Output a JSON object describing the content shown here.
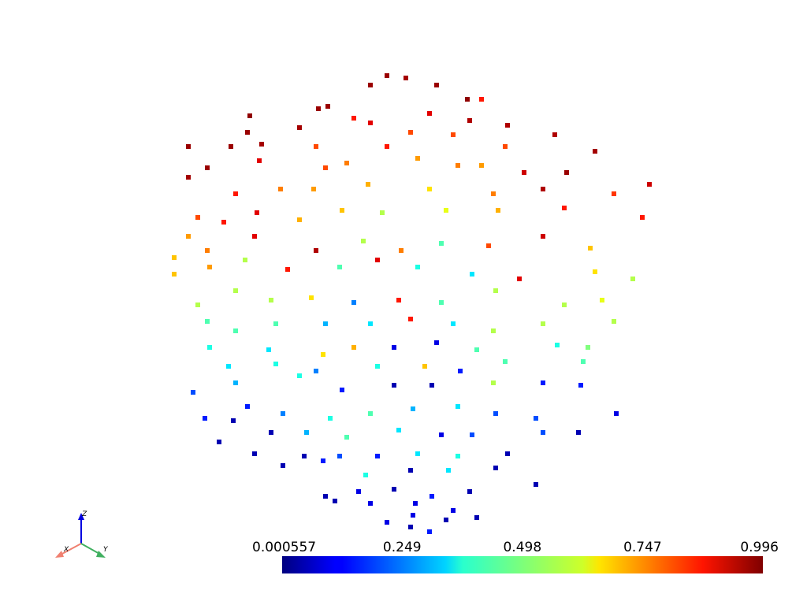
{
  "chart_data": {
    "type": "scatter",
    "colormap": "jet",
    "xlim": [
      -1.1,
      1.1
    ],
    "ylim": [
      -1.1,
      1.1
    ],
    "clim": [
      0.000557,
      0.996
    ],
    "cticks": [
      0.000557,
      0.249,
      0.498,
      0.747,
      0.996
    ],
    "orientation_axes": [
      "X",
      "Y",
      "Z"
    ],
    "x": [
      -0.07,
      -0.14,
      0.01,
      0.14,
      0.27,
      0.33,
      -0.36,
      -0.32,
      -0.65,
      -0.21,
      -0.14,
      0.11,
      0.28,
      0.44,
      -0.44,
      -0.66,
      -0.91,
      -0.73,
      -0.6,
      -0.37,
      -0.07,
      0.03,
      0.21,
      0.43,
      0.64,
      0.81,
      -0.61,
      -0.91,
      -0.83,
      -0.33,
      -0.24,
      0.06,
      0.23,
      0.33,
      0.51,
      0.69,
      1.04,
      0.89,
      -0.71,
      -0.52,
      -0.38,
      -0.15,
      0.11,
      0.38,
      0.59,
      -0.87,
      -0.91,
      -0.76,
      -0.62,
      -0.44,
      -0.26,
      -0.09,
      0.18,
      0.4,
      0.68,
      1.01,
      -0.97,
      -0.83,
      -0.63,
      -0.37,
      -0.17,
      -0.01,
      0.16,
      0.36,
      0.59,
      0.79,
      -0.97,
      -0.82,
      -0.67,
      -0.49,
      -0.27,
      -0.11,
      0.06,
      0.29,
      0.49,
      0.81,
      0.97,
      -0.87,
      -0.71,
      -0.56,
      -0.39,
      -0.21,
      -0.02,
      0.16,
      0.39,
      0.68,
      0.84,
      -0.83,
      -0.71,
      -0.54,
      -0.33,
      -0.14,
      0.03,
      0.21,
      0.38,
      0.59,
      0.89,
      -0.82,
      -0.57,
      -0.34,
      -0.21,
      -0.04,
      0.14,
      0.31,
      0.65,
      0.78,
      -0.74,
      -0.54,
      -0.37,
      -0.11,
      0.09,
      0.24,
      0.43,
      0.76,
      -0.89,
      -0.71,
      -0.44,
      -0.26,
      -0.04,
      0.12,
      0.38,
      0.59,
      0.75,
      -0.84,
      -0.66,
      -0.51,
      -0.31,
      -0.14,
      0.04,
      0.23,
      0.39,
      0.56,
      0.9,
      -0.72,
      -0.56,
      -0.41,
      -0.24,
      -0.02,
      0.16,
      0.29,
      0.59,
      0.74,
      -0.78,
      -0.63,
      -0.42,
      -0.27,
      -0.11,
      0.06,
      0.23,
      0.44,
      -0.51,
      -0.34,
      -0.16,
      0.03,
      0.19,
      0.39,
      -0.33,
      -0.19,
      -0.04,
      0.12,
      0.28,
      0.56,
      -0.29,
      -0.14,
      0.04,
      0.21,
      0.31,
      -0.07,
      0.03,
      0.11,
      0.18,
      0.05
    ],
    "y": [
      0.98,
      0.94,
      0.97,
      0.94,
      0.88,
      0.88,
      0.84,
      0.85,
      0.81,
      0.8,
      0.78,
      0.82,
      0.79,
      0.77,
      0.76,
      0.74,
      0.68,
      0.68,
      0.69,
      0.68,
      0.68,
      0.74,
      0.73,
      0.68,
      0.73,
      0.66,
      0.62,
      0.55,
      0.59,
      0.59,
      0.61,
      0.63,
      0.6,
      0.6,
      0.57,
      0.57,
      0.52,
      0.48,
      0.48,
      0.5,
      0.5,
      0.52,
      0.5,
      0.48,
      0.5,
      0.38,
      0.3,
      0.36,
      0.4,
      0.37,
      0.41,
      0.4,
      0.41,
      0.41,
      0.42,
      0.38,
      0.21,
      0.24,
      0.3,
      0.24,
      0.28,
      0.24,
      0.27,
      0.26,
      0.3,
      0.25,
      0.14,
      0.17,
      0.2,
      0.16,
      0.17,
      0.2,
      0.17,
      0.14,
      0.12,
      0.15,
      0.12,
      0.01,
      0.07,
      0.03,
      0.04,
      0.02,
      0.03,
      0.02,
      0.07,
      0.01,
      0.03,
      -0.06,
      -0.1,
      -0.07,
      -0.07,
      -0.07,
      -0.05,
      -0.07,
      -0.1,
      -0.07,
      -0.06,
      -0.17,
      -0.18,
      -0.2,
      -0.17,
      -0.17,
      -0.15,
      -0.18,
      -0.16,
      -0.17,
      -0.25,
      -0.24,
      -0.27,
      -0.25,
      -0.25,
      -0.27,
      -0.23,
      -0.23,
      -0.36,
      -0.32,
      -0.29,
      -0.35,
      -0.33,
      -0.33,
      -0.32,
      -0.32,
      -0.33,
      -0.47,
      -0.42,
      -0.45,
      -0.47,
      -0.45,
      -0.43,
      -0.42,
      -0.45,
      -0.47,
      -0.45,
      -0.48,
      -0.53,
      -0.53,
      -0.55,
      -0.52,
      -0.54,
      -0.54,
      -0.53,
      -0.53,
      -0.57,
      -0.62,
      -0.63,
      -0.63,
      -0.63,
      -0.62,
      -0.63,
      -0.62,
      -0.67,
      -0.65,
      -0.71,
      -0.69,
      -0.69,
      -0.68,
      -0.8,
      -0.78,
      -0.77,
      -0.8,
      -0.78,
      -0.75,
      -0.82,
      -0.83,
      -0.88,
      -0.86,
      -0.89,
      -0.91,
      -0.93,
      -0.95,
      -0.9,
      -0.83
    ],
    "values": [
      0.97,
      0.97,
      0.96,
      0.97,
      0.98,
      0.85,
      0.97,
      0.97,
      0.98,
      0.85,
      0.9,
      0.9,
      0.95,
      0.95,
      0.96,
      0.97,
      0.97,
      0.97,
      0.96,
      0.8,
      0.85,
      0.8,
      0.8,
      0.8,
      0.95,
      0.96,
      0.9,
      0.96,
      0.97,
      0.8,
      0.75,
      0.72,
      0.75,
      0.72,
      0.92,
      0.97,
      0.92,
      0.82,
      0.85,
      0.75,
      0.72,
      0.7,
      0.65,
      0.75,
      0.95,
      0.8,
      0.72,
      0.85,
      0.9,
      0.7,
      0.68,
      0.55,
      0.6,
      0.7,
      0.85,
      0.85,
      0.68,
      0.75,
      0.9,
      0.95,
      0.55,
      0.75,
      0.45,
      0.8,
      0.92,
      0.68,
      0.68,
      0.72,
      0.55,
      0.85,
      0.45,
      0.9,
      0.4,
      0.35,
      0.9,
      0.65,
      0.55,
      0.55,
      0.55,
      0.55,
      0.65,
      0.25,
      0.85,
      0.45,
      0.55,
      0.55,
      0.6,
      0.45,
      0.45,
      0.45,
      0.3,
      0.35,
      0.85,
      0.35,
      0.55,
      0.55,
      0.55,
      0.4,
      0.35,
      0.65,
      0.7,
      0.1,
      0.1,
      0.45,
      0.4,
      0.5,
      0.35,
      0.4,
      0.25,
      0.4,
      0.68,
      0.15,
      0.45,
      0.45,
      0.2,
      0.3,
      0.4,
      0.15,
      0.05,
      0.05,
      0.55,
      0.15,
      0.15,
      0.15,
      0.15,
      0.25,
      0.4,
      0.45,
      0.3,
      0.35,
      0.2,
      0.2,
      0.1,
      0.05,
      0.05,
      0.3,
      0.45,
      0.35,
      0.1,
      0.2,
      0.2,
      0.05,
      0.05,
      0.05,
      0.05,
      0.2,
      0.15,
      0.35,
      0.4,
      0.05,
      0.05,
      0.15,
      0.4,
      0.05,
      0.35,
      0.05,
      0.05,
      0.1,
      0.05,
      0.15,
      0.05,
      0.05,
      0.05,
      0.1,
      0.1,
      0.1,
      0.05,
      0.1,
      0.05,
      0.15,
      0.05,
      0.1
    ]
  }
}
